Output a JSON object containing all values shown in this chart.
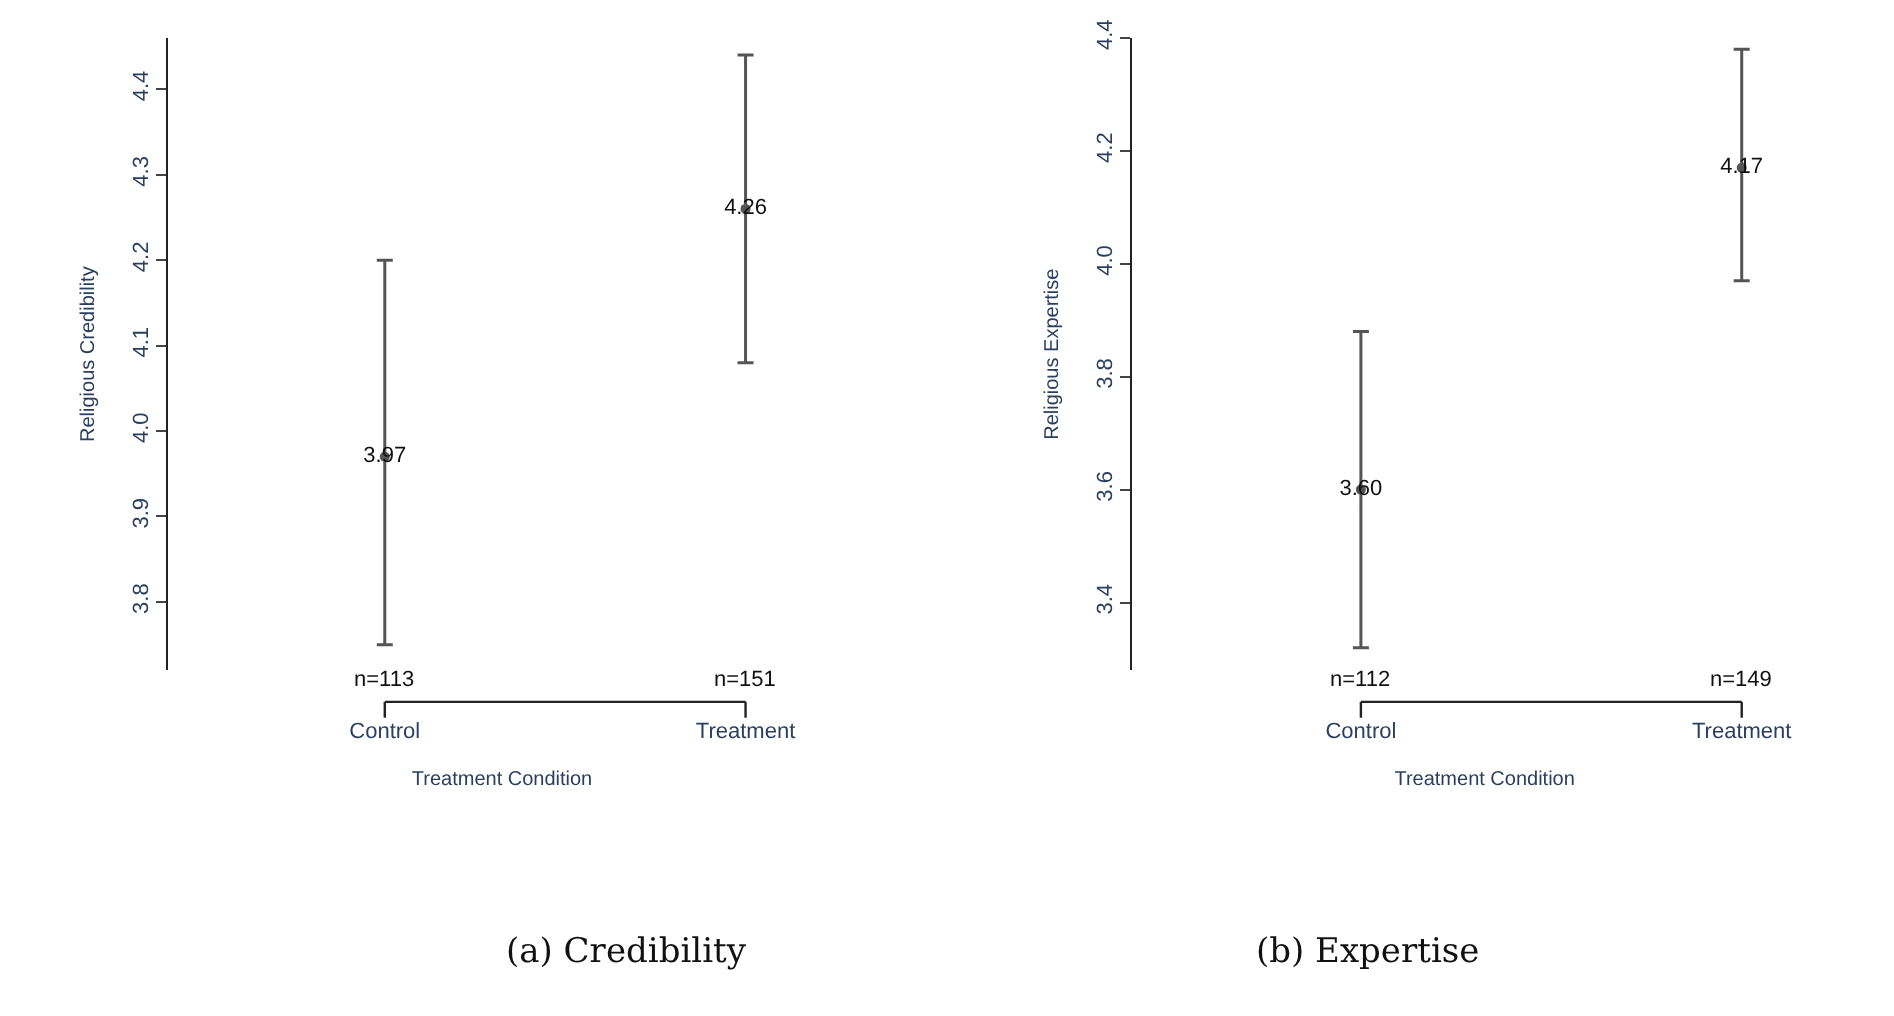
{
  "chart_data": [
    {
      "type": "scatter",
      "title": "(a) Credibility",
      "xlabel": "Treatment Condition",
      "ylabel": "Religious Credibility",
      "categories": [
        "Control",
        "Treatment"
      ],
      "values": [
        3.97,
        4.26
      ],
      "errors": [
        [
          3.75,
          4.2
        ],
        [
          4.08,
          4.44
        ]
      ],
      "value_labels": [
        "3.97",
        "4.26"
      ],
      "color": "#555555",
      "marker": "circle",
      "ylim": [
        3.72,
        4.46
      ],
      "yticks": [
        3.8,
        3.9,
        {
          "value": 4,
          "label": "4.0"
        },
        4.1,
        4.2,
        4.3,
        4.4
      ],
      "annotations": [
        "n=113",
        "n=151"
      ]
    },
    {
      "type": "scatter",
      "title": "(b) Expertise",
      "xlabel": "Treatment Condition",
      "ylabel": "Religious Expertise",
      "categories": [
        "Control",
        "Treatment"
      ],
      "values": [
        3.6,
        4.17
      ],
      "errors": [
        [
          3.32,
          3.88
        ],
        [
          3.97,
          4.38
        ]
      ],
      "value_labels": [
        "3.60",
        "4.17"
      ],
      "color": "#555555",
      "marker": "circle",
      "ylim": [
        3.28,
        4.4
      ],
      "yticks": [
        3.4,
        3.6,
        3.8,
        {
          "value": 4,
          "label": "4.0"
        },
        4.2,
        4.4
      ],
      "annotations": [
        "n=112",
        "n=149"
      ]
    }
  ]
}
